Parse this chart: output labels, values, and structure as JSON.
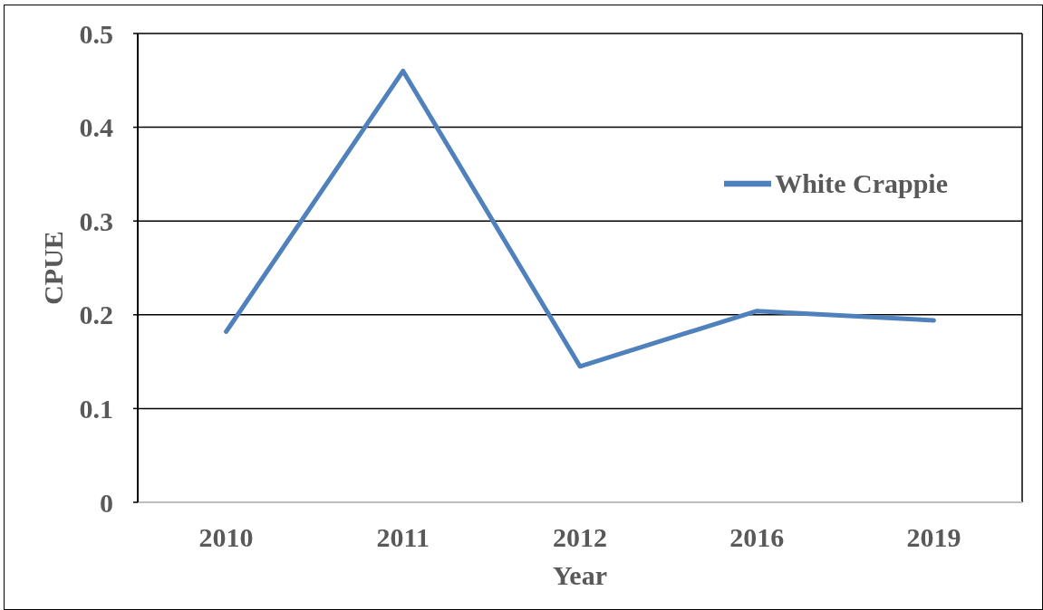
{
  "chart_data": {
    "type": "line",
    "xlabel": "Year",
    "ylabel": "CPUE",
    "categories": [
      "2010",
      "2011",
      "2012",
      "2016",
      "2019"
    ],
    "series": [
      {
        "name": "White Crappie",
        "color": "#4f81bd",
        "values": [
          0.182,
          0.46,
          0.145,
          0.204,
          0.194
        ]
      }
    ],
    "ylim": [
      0,
      0.5
    ],
    "yticks": [
      0,
      0.1,
      0.2,
      0.3,
      0.4,
      0.5
    ],
    "grid": "y",
    "legend": "top right"
  }
}
